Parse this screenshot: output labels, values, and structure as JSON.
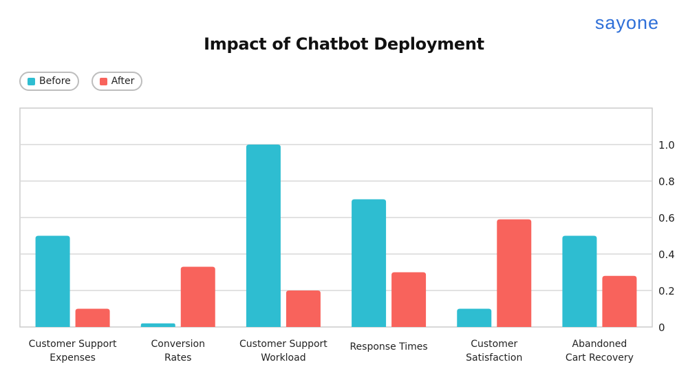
{
  "brand": {
    "logo_text": "sayone"
  },
  "colors": {
    "before": "#2ebdd1",
    "after": "#f8635c",
    "grid": "#d9d9d9",
    "frame": "#cccccc"
  },
  "chart_data": {
    "type": "bar",
    "title": "Impact of Chatbot Deployment",
    "categories": [
      [
        "Customer Support",
        "Expenses"
      ],
      [
        "Conversion",
        "Rates"
      ],
      [
        "Customer Support",
        "Workload"
      ],
      [
        "Response Times"
      ],
      [
        "Customer",
        "Satisfaction"
      ],
      [
        "Abandoned",
        "Cart Recovery"
      ]
    ],
    "series": [
      {
        "name": "Before",
        "values": [
          0.5,
          0.02,
          1.0,
          0.7,
          0.1,
          0.5
        ]
      },
      {
        "name": "After",
        "values": [
          0.1,
          0.33,
          0.2,
          0.3,
          0.59,
          0.28
        ]
      }
    ],
    "ylim": [
      0,
      1.2
    ],
    "yticks": [
      "0",
      "0.2",
      "0.4",
      "0.6",
      "0.8",
      "1.0"
    ],
    "y_axis_position": "right",
    "grid": true,
    "legend_position": "top-left"
  }
}
